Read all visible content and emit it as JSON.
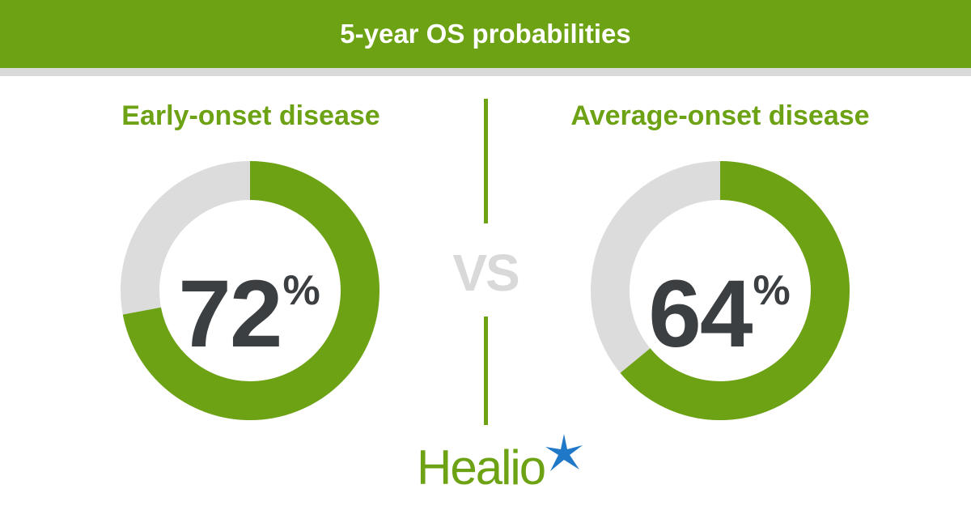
{
  "colors": {
    "accent": "#6ca213",
    "track": "#dcdcdc",
    "rule": "#d9d9d9",
    "value_text": "#3b3f42",
    "star": "#1f78c8"
  },
  "header": {
    "title": "5-year OS probabilities"
  },
  "vs_label": "VS",
  "logo": {
    "name": "Healio"
  },
  "chart_data": [
    {
      "type": "pie",
      "title": "Early-onset disease",
      "values": [
        72,
        28
      ],
      "display_value": "72",
      "unit": "%"
    },
    {
      "type": "pie",
      "title": "Average-onset disease",
      "values": [
        64,
        36
      ],
      "display_value": "64",
      "unit": "%"
    }
  ]
}
